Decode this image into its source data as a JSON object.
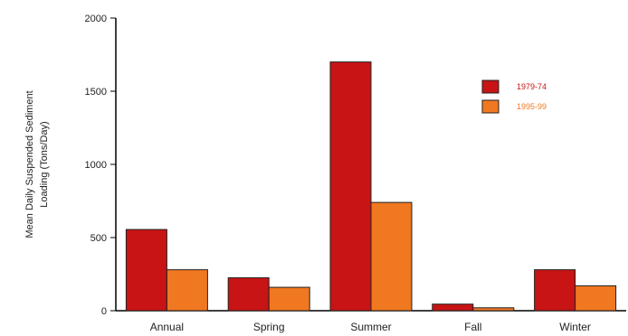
{
  "chart_data": {
    "type": "bar",
    "title": "",
    "ylabel_lines": [
      "Mean Daily Suspended Sediment",
      "Loading (Tons/Day)"
    ],
    "categories": [
      "Annual",
      "Spring",
      "Summer",
      "Fall",
      "Winter"
    ],
    "series": [
      {
        "name": "1979-74",
        "color": "#c81414",
        "values": [
          555,
          225,
          1700,
          45,
          280
        ]
      },
      {
        "name": "1995-99",
        "color": "#f07820",
        "values": [
          280,
          160,
          740,
          20,
          170
        ]
      }
    ],
    "ylim": [
      0,
      2000
    ],
    "yticks": [
      0,
      500,
      1000,
      1500,
      2000
    ],
    "grid": false,
    "legend_position": "top-right"
  }
}
